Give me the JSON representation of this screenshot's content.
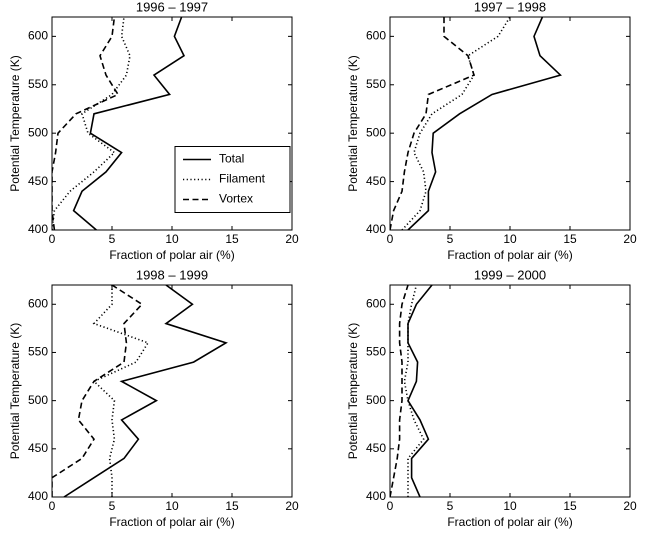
{
  "chart_data": [
    {
      "type": "line",
      "title": "1996 – 1997",
      "x_label": "Fraction of polar air (%)",
      "y_label": "Potential Temperature (K)",
      "y": [
        400,
        420,
        440,
        460,
        480,
        500,
        520,
        540,
        560,
        580,
        600,
        620
      ],
      "series": [
        {
          "name": "Total",
          "color": "#000000",
          "style": "solid",
          "values": [
            3.7,
            1.8,
            2.5,
            4.5,
            5.8,
            3.2,
            3.5,
            9.8,
            8.5,
            11,
            10.2,
            10.8
          ]
        },
        {
          "name": "Filament",
          "color": "#000000",
          "style": "dotted",
          "values": [
            0,
            0.2,
            1.5,
            3.5,
            5.2,
            3,
            2.5,
            5,
            6.2,
            6.5,
            5.8,
            6
          ]
        },
        {
          "name": "Vortex",
          "color": "#000000",
          "style": "dashed",
          "values": [
            0.2,
            0,
            0,
            0,
            0.3,
            0.5,
            2,
            5.5,
            4.5,
            4,
            5,
            5.2
          ]
        }
      ],
      "xlim": [
        0,
        20
      ],
      "xticks": [
        0,
        5,
        10,
        15,
        20
      ],
      "ylim": [
        400,
        620
      ],
      "yticks": [
        400,
        450,
        500,
        550,
        600
      ],
      "legend": "right"
    },
    {
      "type": "line",
      "title": "1997 – 1998",
      "x_label": "Fraction of polar air (%)",
      "y_label": "Potential Temperature (K)",
      "y": [
        400,
        420,
        440,
        460,
        480,
        500,
        520,
        540,
        560,
        580,
        600,
        620
      ],
      "series": [
        {
          "color": "#000000",
          "style": "solid",
          "values": [
            1.5,
            3.2,
            3.2,
            3.8,
            3.5,
            3.6,
            5.8,
            8.5,
            14.2,
            12.5,
            12,
            12.7
          ]
        },
        {
          "color": "#000000",
          "style": "dotted",
          "values": [
            1,
            2.5,
            3,
            2.8,
            2,
            2.5,
            3.5,
            6,
            7,
            6.5,
            9,
            10
          ]
        },
        {
          "color": "#000000",
          "style": "dashed",
          "values": [
            0,
            0.3,
            1,
            1.2,
            1.5,
            2,
            3,
            3.2,
            7,
            6.5,
            4.5,
            4.5
          ]
        }
      ],
      "xlim": [
        0,
        20
      ],
      "xticks": [
        0,
        5,
        10,
        15,
        20
      ],
      "ylim": [
        400,
        620
      ],
      "yticks": [
        400,
        450,
        500,
        550,
        600
      ]
    },
    {
      "type": "line",
      "title": "1998 – 1999",
      "x_label": "Fraction of polar air (%)",
      "y_label": "Potential Temperature (K)",
      "y": [
        400,
        420,
        440,
        460,
        480,
        500,
        520,
        540,
        560,
        580,
        600,
        620
      ],
      "series": [
        {
          "color": "#000000",
          "style": "solid",
          "values": [
            1,
            3.5,
            6,
            7.2,
            5.8,
            8.7,
            5.8,
            11.8,
            14.5,
            9.5,
            11.7,
            9.5
          ]
        },
        {
          "color": "#000000",
          "style": "dotted",
          "values": [
            5,
            5,
            4.8,
            5.2,
            5,
            5.2,
            3.5,
            7,
            8,
            3.5,
            5,
            5
          ]
        },
        {
          "color": "#000000",
          "style": "dashed",
          "values": [
            0,
            0,
            2.5,
            3.5,
            2.2,
            2.5,
            3.5,
            6,
            6.2,
            6,
            7.5,
            5
          ]
        }
      ],
      "xlim": [
        0,
        20
      ],
      "xticks": [
        0,
        5,
        10,
        15,
        20
      ],
      "ylim": [
        400,
        620
      ],
      "yticks": [
        400,
        450,
        500,
        550,
        600
      ]
    },
    {
      "type": "line",
      "title": "1999 – 2000",
      "x_label": "Fraction of polar air (%)",
      "y_label": "Potential Temperature (K)",
      "y": [
        400,
        420,
        440,
        460,
        480,
        500,
        520,
        540,
        560,
        580,
        600,
        620
      ],
      "series": [
        {
          "color": "#000000",
          "style": "solid",
          "values": [
            2.5,
            1.8,
            1.8,
            3.2,
            2.5,
            1.5,
            2.2,
            2.3,
            1.5,
            1.5,
            2.2,
            3.5
          ]
        },
        {
          "color": "#000000",
          "style": "dotted",
          "values": [
            1.5,
            1.5,
            1.5,
            2.8,
            2,
            1.5,
            1.2,
            1.5,
            1.5,
            1.5,
            1.8,
            2.2
          ]
        },
        {
          "color": "#000000",
          "style": "dashed",
          "values": [
            0,
            0.3,
            0.6,
            0.8,
            0.8,
            1,
            1,
            1,
            0.8,
            0.8,
            1,
            1.5
          ]
        }
      ],
      "xlim": [
        0,
        20
      ],
      "xticks": [
        0,
        5,
        10,
        15,
        20
      ],
      "ylim": [
        400,
        620
      ],
      "yticks": [
        400,
        450,
        500,
        550,
        600
      ]
    }
  ]
}
